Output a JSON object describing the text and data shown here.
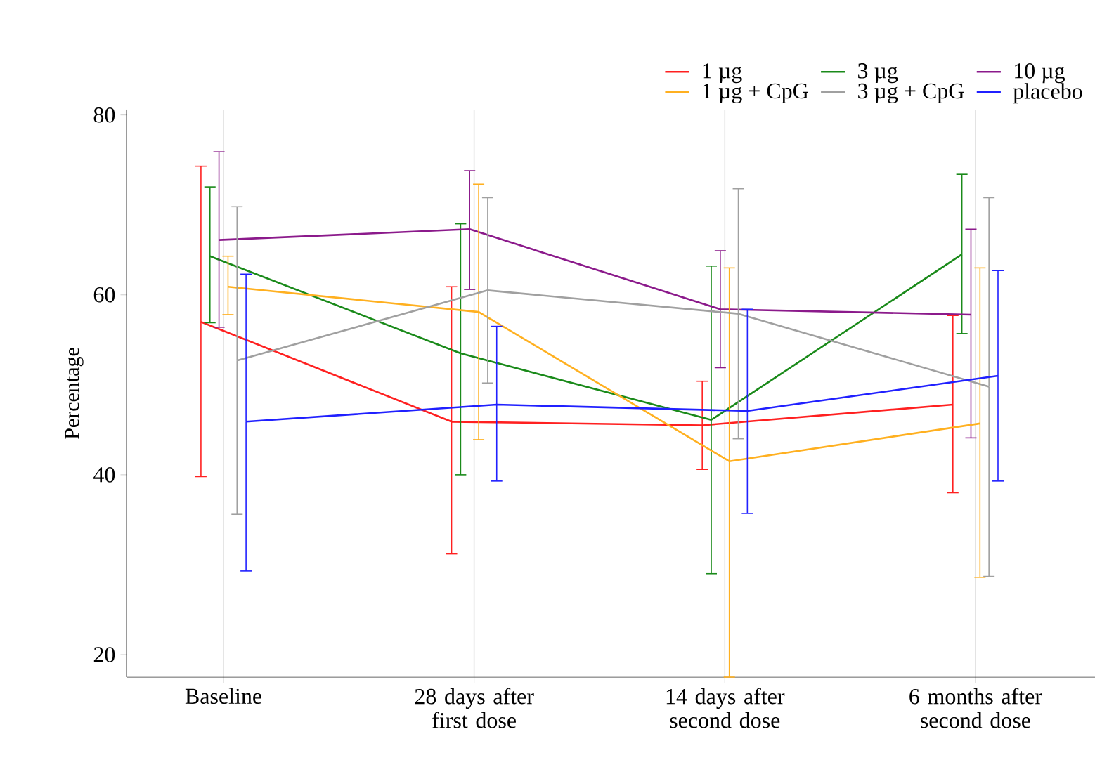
{
  "chart_data": {
    "type": "line",
    "ylabel": "Percentage",
    "categories": [
      "Baseline",
      "28 days after first dose",
      "14 days after second dose",
      "6 months after second dose"
    ],
    "series": [
      {
        "name": "1 µg",
        "color": "#ff2020",
        "values": [
          57.0,
          45.9,
          45.5,
          47.8
        ],
        "errors": [
          [
            39.8,
            74.3
          ],
          [
            31.2,
            60.9
          ],
          [
            40.6,
            50.4
          ],
          [
            38.0,
            57.7
          ]
        ]
      },
      {
        "name": "3 µg",
        "color": "#1a8a1a",
        "values": [
          64.3,
          53.5,
          46.1,
          64.5
        ],
        "errors": [
          [
            56.9,
            72.0
          ],
          [
            40.0,
            67.9
          ],
          [
            29.0,
            63.2
          ],
          [
            55.7,
            73.4
          ]
        ]
      },
      {
        "name": "10 µg",
        "color": "#8b1a8b",
        "values": [
          66.1,
          67.3,
          58.4,
          57.8
        ],
        "errors": [
          [
            56.4,
            75.9
          ],
          [
            60.6,
            73.8
          ],
          [
            51.9,
            64.9
          ],
          [
            44.1,
            67.3
          ]
        ]
      },
      {
        "name": "1 µg + CpG",
        "color": "#ffb020",
        "values": [
          60.9,
          58.1,
          41.5,
          45.7
        ],
        "errors": [
          [
            57.8,
            64.3
          ],
          [
            43.9,
            72.3
          ],
          [
            17.5,
            63.0
          ],
          [
            28.6,
            63.0
          ]
        ]
      },
      {
        "name": "3 µg + CpG",
        "color": "#a0a0a0",
        "values": [
          52.7,
          60.5,
          57.9,
          49.8
        ],
        "errors": [
          [
            35.6,
            69.8
          ],
          [
            50.2,
            70.8
          ],
          [
            44.0,
            71.8
          ],
          [
            28.7,
            70.8
          ]
        ]
      },
      {
        "name": "placebo",
        "color": "#2020ff",
        "values": [
          45.9,
          47.8,
          47.1,
          51.0
        ],
        "errors": [
          [
            29.3,
            62.3
          ],
          [
            39.3,
            56.5
          ],
          [
            35.7,
            58.4
          ],
          [
            39.3,
            62.7
          ]
        ]
      }
    ],
    "ylim": [
      17.5,
      80.6
    ],
    "yticks": [
      20,
      40,
      60,
      80
    ],
    "grid": "x",
    "legend": "top right"
  }
}
